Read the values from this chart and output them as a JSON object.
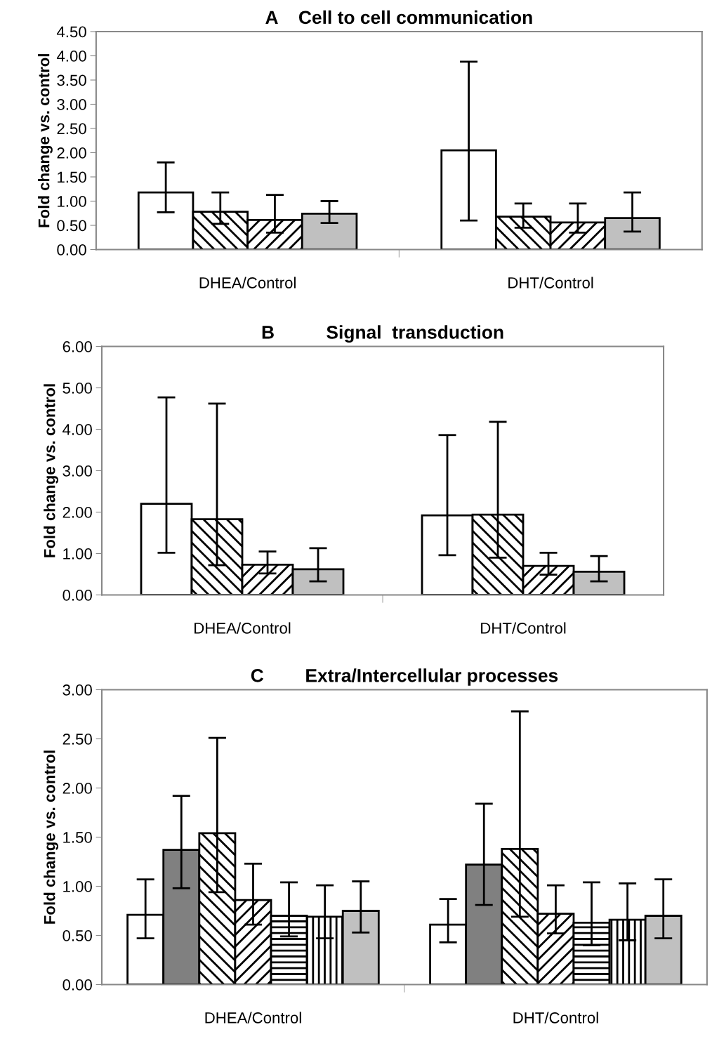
{
  "chart_data": [
    {
      "type": "bar",
      "title": "A    Cell to cell communication",
      "ylabel": "Fold change vs. control",
      "categories": [
        "DHEA/Control",
        "DHT/Control"
      ],
      "ylim": [
        0,
        4.5
      ],
      "yticks": [
        {
          "value": 0,
          "label": "0.00"
        },
        {
          "value": 0.5,
          "label": "0.50"
        },
        {
          "value": 1,
          "label": "1.00"
        },
        {
          "value": 1.5,
          "label": "1.50"
        },
        {
          "value": 2,
          "label": "2.00"
        },
        {
          "value": 2.5,
          "label": "2.50"
        },
        {
          "value": 3,
          "label": "3.00"
        },
        {
          "value": 3.5,
          "label": "3.50"
        },
        {
          "value": 4,
          "label": "4.00"
        },
        {
          "value": 4.5,
          "label": "4.50"
        }
      ],
      "grid": false,
      "series": [
        {
          "color": "#ffffff",
          "values": [
            1.18,
            2.05
          ],
          "errors": [
            [
              0.77,
              1.8
            ],
            [
              0.6,
              3.88
            ]
          ]
        },
        {
          "color": "#000000",
          "values": [
            0.78,
            0.68
          ],
          "errors": [
            [
              0.53,
              1.18
            ],
            [
              0.45,
              0.95
            ]
          ]
        },
        {
          "color": "#000000",
          "values": [
            0.61,
            0.56
          ],
          "errors": [
            [
              0.35,
              1.13
            ],
            [
              0.35,
              0.95
            ]
          ]
        },
        {
          "color": "#c0c0c0",
          "values": [
            0.74,
            0.65
          ],
          "errors": [
            [
              0.55,
              1.0
            ],
            [
              0.37,
              1.18
            ]
          ]
        }
      ]
    },
    {
      "type": "bar",
      "title": "B          Signal  transduction",
      "ylabel": "Fold change vs. control",
      "categories": [
        "DHEA/Control",
        "DHT/Control"
      ],
      "ylim": [
        0,
        6
      ],
      "yticks": [
        {
          "value": 0,
          "label": "0.00"
        },
        {
          "value": 1,
          "label": "1.00"
        },
        {
          "value": 2,
          "label": "2.00"
        },
        {
          "value": 3,
          "label": "3.00"
        },
        {
          "value": 4,
          "label": "4.00"
        },
        {
          "value": 5,
          "label": "5.00"
        },
        {
          "value": 6,
          "label": "6.00"
        }
      ],
      "grid": false,
      "series": [
        {
          "color": "#ffffff",
          "values": [
            2.2,
            1.92
          ],
          "errors": [
            [
              1.02,
              4.77
            ],
            [
              0.96,
              3.86
            ]
          ]
        },
        {
          "color": "#000000",
          "values": [
            1.83,
            1.94
          ],
          "errors": [
            [
              0.72,
              4.62
            ],
            [
              0.9,
              4.18
            ]
          ]
        },
        {
          "color": "#000000",
          "values": [
            0.73,
            0.7
          ],
          "errors": [
            [
              0.52,
              1.05
            ],
            [
              0.49,
              1.02
            ]
          ]
        },
        {
          "color": "#c0c0c0",
          "values": [
            0.62,
            0.56
          ],
          "errors": [
            [
              0.33,
              1.13
            ],
            [
              0.33,
              0.94
            ]
          ]
        }
      ]
    },
    {
      "type": "bar",
      "title": "C        Extra/Intercellular processes",
      "ylabel": "Fold change vs. control",
      "categories": [
        "DHEA/Control",
        "DHT/Control"
      ],
      "ylim": [
        0,
        3
      ],
      "yticks": [
        {
          "value": 0,
          "label": "0.00"
        },
        {
          "value": 0.5,
          "label": "0.50"
        },
        {
          "value": 1,
          "label": "1.00"
        },
        {
          "value": 1.5,
          "label": "1.50"
        },
        {
          "value": 2,
          "label": "2.00"
        },
        {
          "value": 2.5,
          "label": "2.50"
        },
        {
          "value": 3,
          "label": "3.00"
        }
      ],
      "grid": false,
      "series": [
        {
          "color": "#ffffff",
          "values": [
            0.71,
            0.61
          ],
          "errors": [
            [
              0.47,
              1.07
            ],
            [
              0.43,
              0.87
            ]
          ]
        },
        {
          "color": "#808080",
          "values": [
            1.37,
            1.22
          ],
          "errors": [
            [
              0.98,
              1.92
            ],
            [
              0.81,
              1.84
            ]
          ]
        },
        {
          "color": "#000000",
          "values": [
            1.54,
            1.38
          ],
          "errors": [
            [
              0.94,
              2.51
            ],
            [
              0.69,
              2.78
            ]
          ]
        },
        {
          "color": "#000000",
          "values": [
            0.86,
            0.72
          ],
          "errors": [
            [
              0.61,
              1.23
            ],
            [
              0.52,
              1.01
            ]
          ]
        },
        {
          "color": "#000000",
          "values": [
            0.7,
            0.63
          ],
          "errors": [
            [
              0.49,
              1.04
            ],
            [
              0.4,
              1.04
            ]
          ]
        },
        {
          "color": "#000000",
          "values": [
            0.69,
            0.66
          ],
          "errors": [
            [
              0.47,
              1.01
            ],
            [
              0.45,
              1.03
            ]
          ]
        },
        {
          "color": "#c0c0c0",
          "values": [
            0.75,
            0.7
          ],
          "errors": [
            [
              0.53,
              1.05
            ],
            [
              0.47,
              1.07
            ]
          ]
        }
      ]
    }
  ]
}
